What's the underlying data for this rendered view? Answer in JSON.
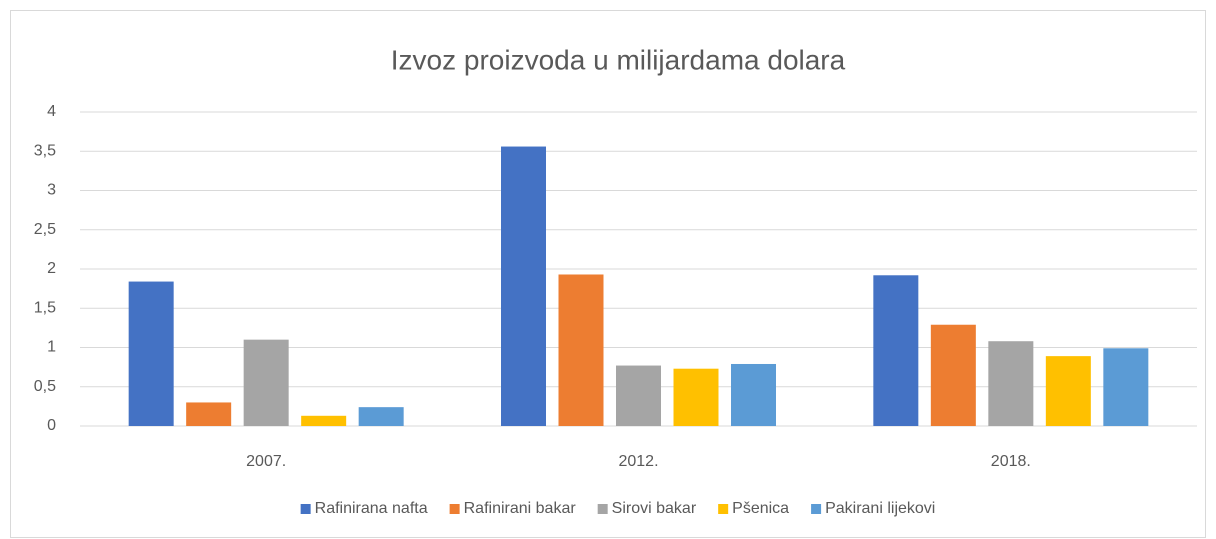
{
  "chart_data": {
    "type": "bar",
    "title": "Izvoz proizvoda u milijardama dolara",
    "categories": [
      "2007.",
      "2012.",
      "2018."
    ],
    "series": [
      {
        "name": "Rafinirana nafta",
        "color": "#4472c4",
        "values": [
          1.84,
          3.56,
          1.92
        ]
      },
      {
        "name": "Rafinirani bakar",
        "color": "#ed7d31",
        "values": [
          0.3,
          1.93,
          1.29
        ]
      },
      {
        "name": "Sirovi bakar",
        "color": "#a5a5a5",
        "values": [
          1.1,
          0.77,
          1.08
        ]
      },
      {
        "name": "Pšenica",
        "color": "#ffc000",
        "values": [
          0.13,
          0.73,
          0.89
        ]
      },
      {
        "name": "Pakirani lijekovi",
        "color": "#5b9bd5",
        "values": [
          0.24,
          0.79,
          0.99
        ]
      }
    ],
    "ylim": [
      0,
      4
    ],
    "yticks": [
      0,
      {
        "value": 0.5,
        "label": "0,5"
      },
      1,
      {
        "value": 1.5,
        "label": "1,5"
      },
      2,
      {
        "value": 2.5,
        "label": "2,5"
      },
      3,
      {
        "value": 3.5,
        "label": "3,5"
      },
      4
    ],
    "grid": true,
    "legend": "bottom"
  }
}
